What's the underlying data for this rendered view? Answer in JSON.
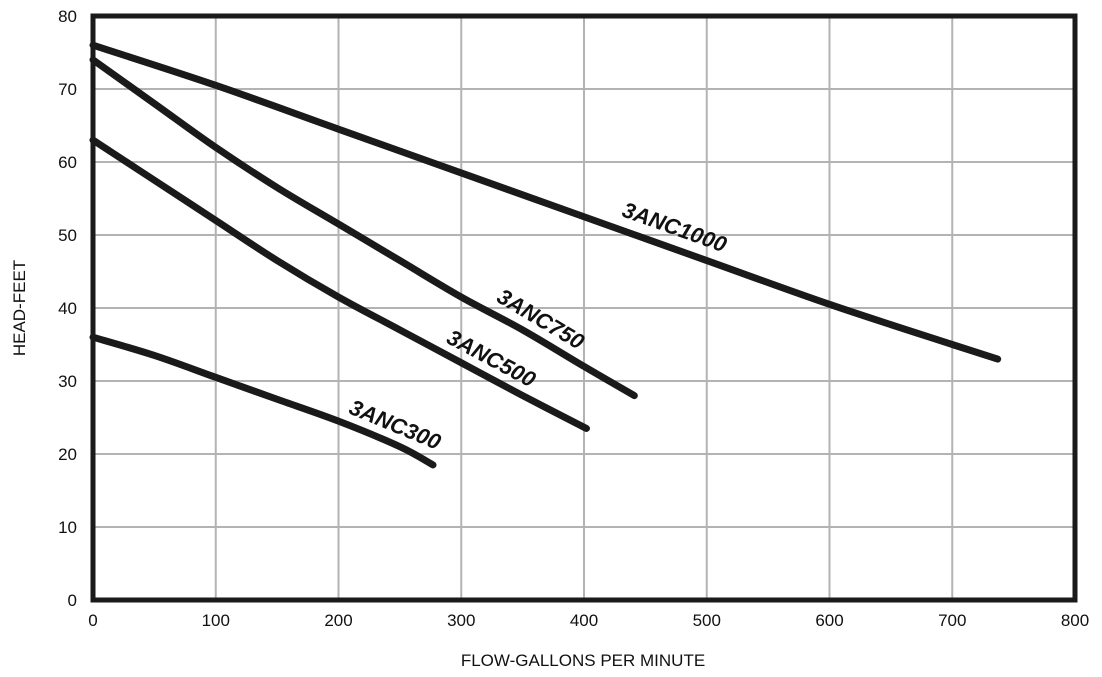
{
  "chart_data": {
    "type": "line",
    "title": "",
    "xlabel": "FLOW-GALLONS PER MINUTE",
    "ylabel": "HEAD-FEET",
    "xlim": [
      0,
      800
    ],
    "ylim": [
      0,
      80
    ],
    "xticks": [
      "0",
      "100",
      "200",
      "300",
      "400",
      "500",
      "600",
      "700",
      "800"
    ],
    "yticks": [
      "0",
      "10",
      "20",
      "30",
      "40",
      "50",
      "60",
      "70",
      "80"
    ],
    "grid": true,
    "legend": "none",
    "series_color": "#1a1a1a",
    "grid_color": "#b3b3b3",
    "series": [
      {
        "name": "3ANC1000",
        "x": [
          0,
          100,
          200,
          300,
          400,
          500,
          600,
          700,
          737
        ],
        "y": [
          76,
          70.5,
          64.5,
          58.5,
          52.5,
          46.5,
          40.5,
          35,
          33
        ]
      },
      {
        "name": "3ANC750",
        "x": [
          0,
          50,
          100,
          150,
          200,
          250,
          300,
          350,
          400,
          441
        ],
        "y": [
          74,
          68,
          62,
          56.5,
          51.5,
          46.5,
          41.5,
          37,
          32,
          28
        ]
      },
      {
        "name": "3ANC500",
        "x": [
          0,
          50,
          100,
          150,
          200,
          250,
          300,
          350,
          402
        ],
        "y": [
          63,
          57.5,
          52,
          46.5,
          41.5,
          37,
          32.5,
          28,
          23.5
        ]
      },
      {
        "name": "3ANC300",
        "x": [
          0,
          50,
          100,
          150,
          200,
          250,
          277
        ],
        "y": [
          36,
          33.5,
          30.5,
          27.5,
          24.5,
          21,
          18.5
        ]
      }
    ]
  }
}
